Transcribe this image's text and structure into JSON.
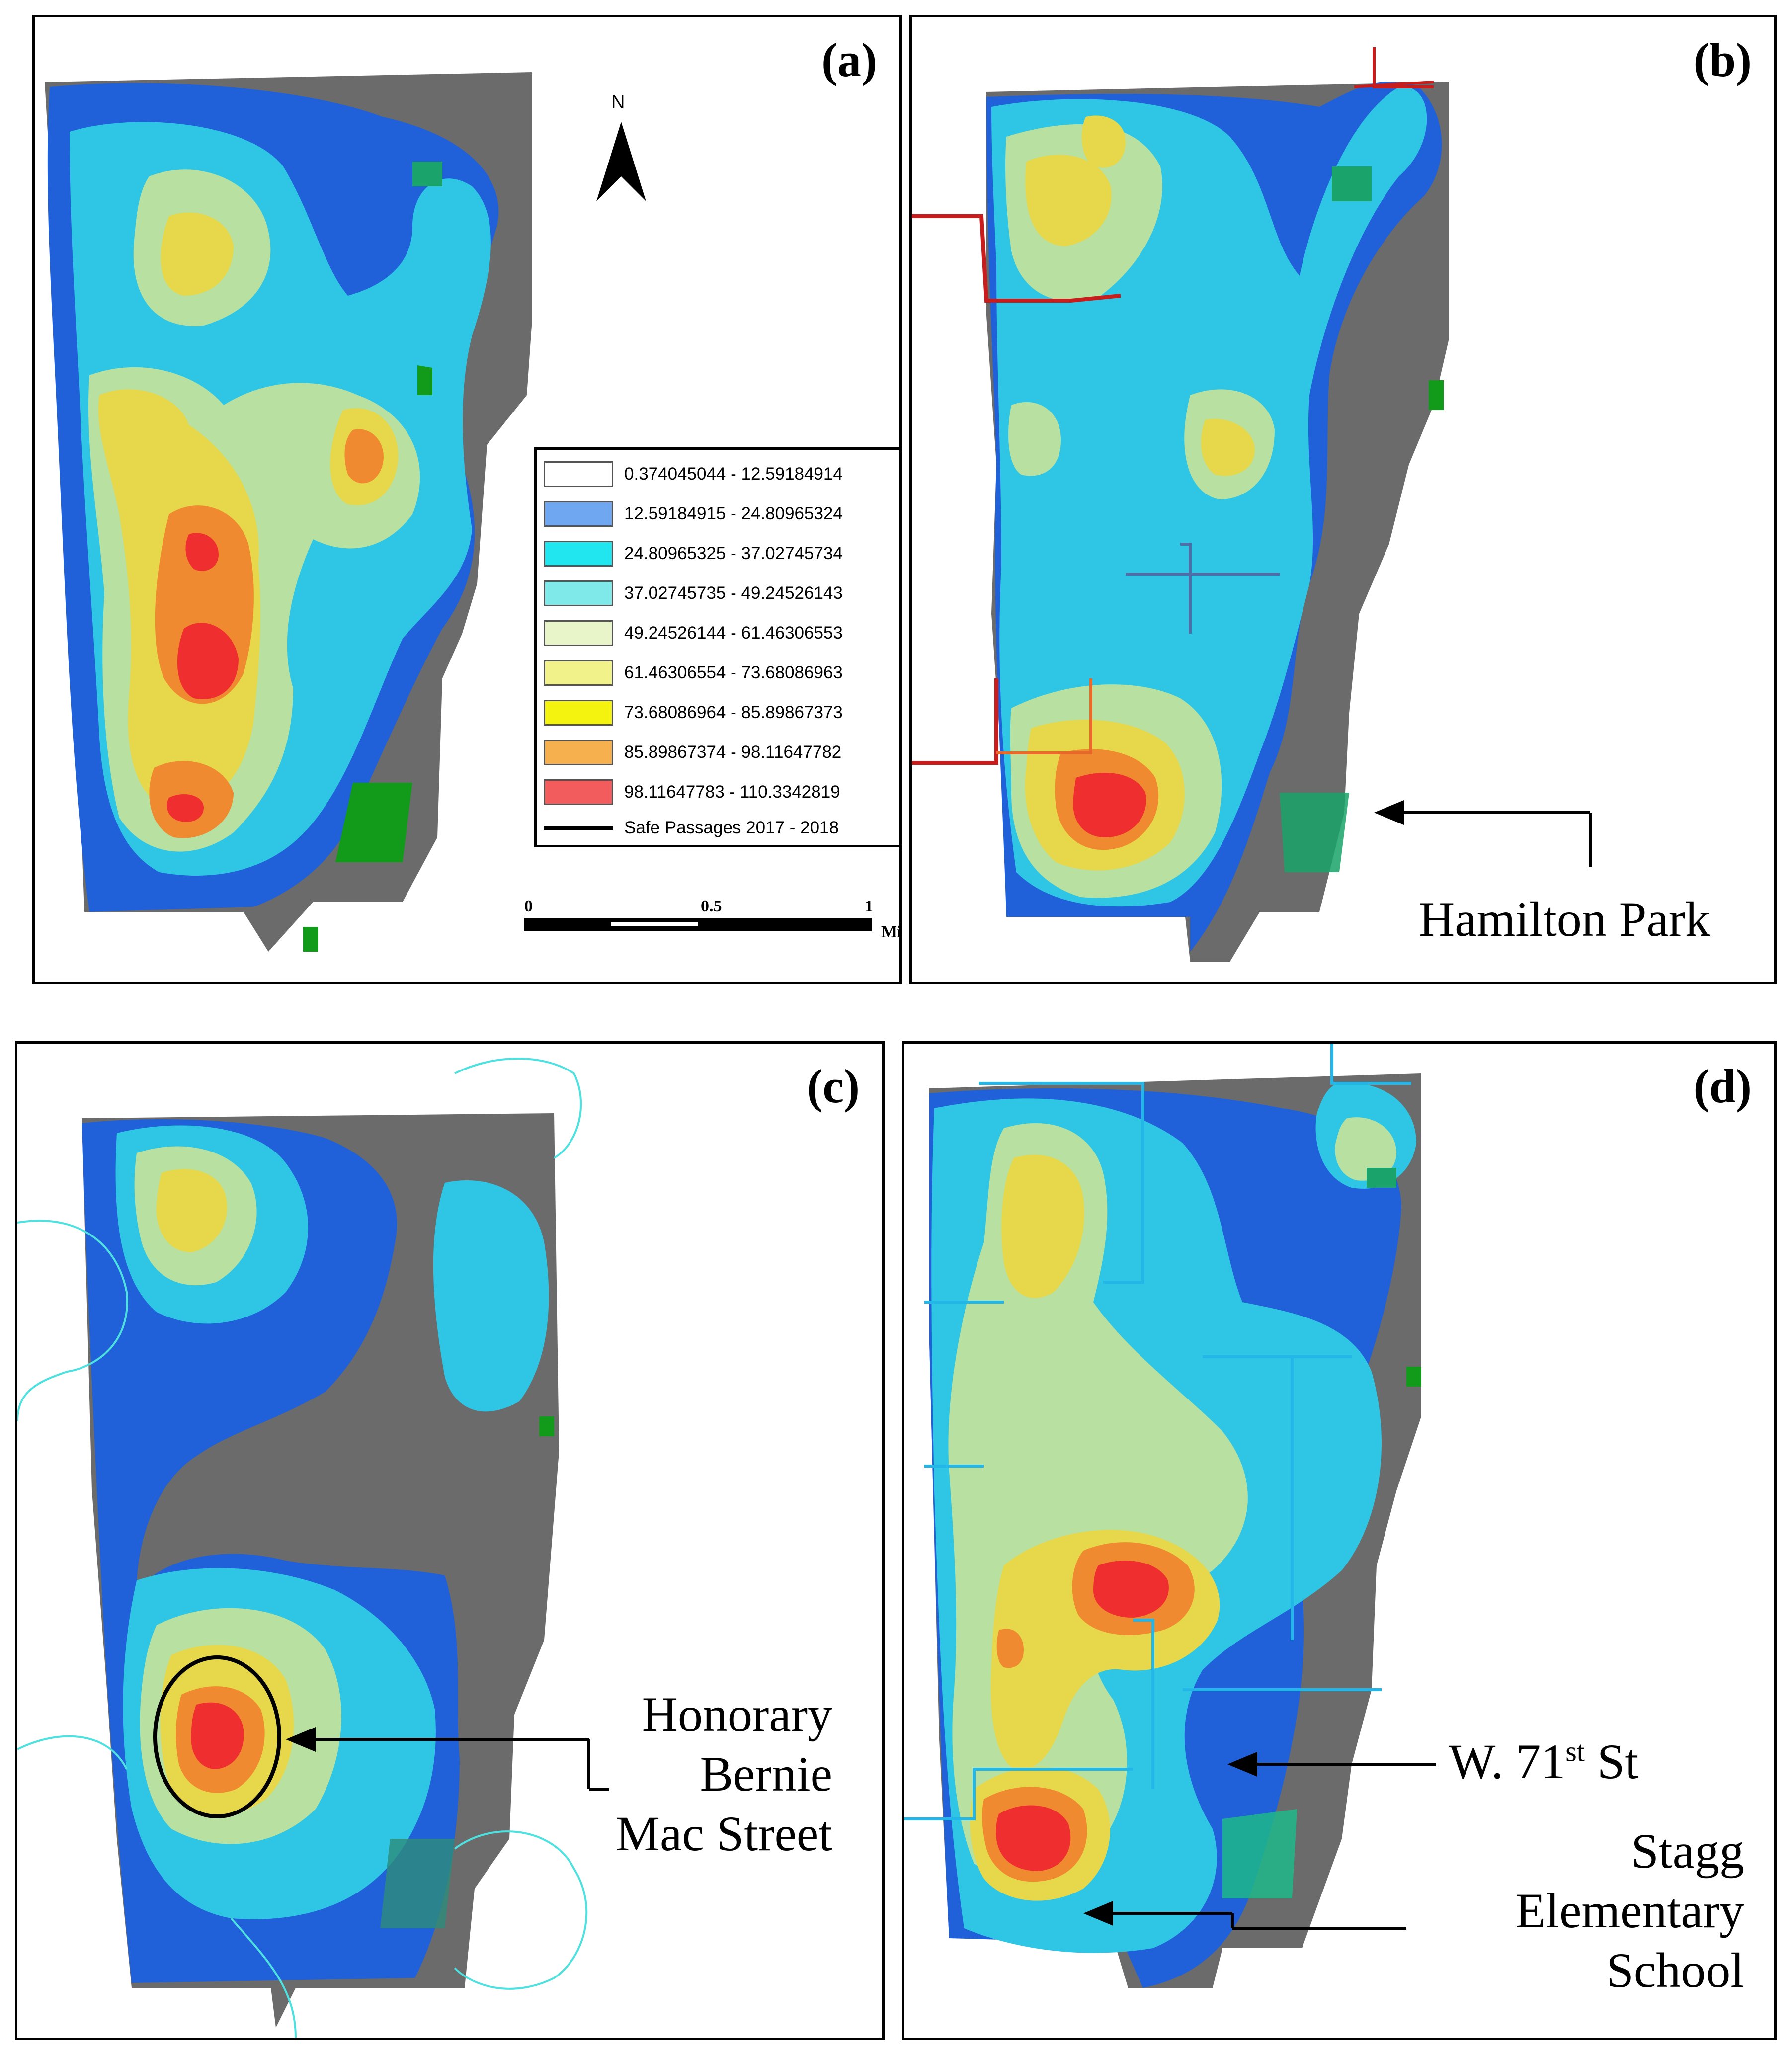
{
  "panels": [
    {
      "id": "a",
      "label": "(a)"
    },
    {
      "id": "b",
      "label": "(b)"
    },
    {
      "id": "c",
      "label": "(c)"
    },
    {
      "id": "d",
      "label": "(d)"
    }
  ],
  "north_arrow": {
    "letter": "N"
  },
  "legend": {
    "classes": [
      {
        "range": "0.374045044 - 12.59184914",
        "color": "#ffffff"
      },
      {
        "range": "12.59184915 - 24.80965324",
        "color": "#6fa8f0"
      },
      {
        "range": "24.80965325 - 37.02745734",
        "color": "#21e6f0"
      },
      {
        "range": "37.02745735 - 49.24526143",
        "color": "#7fe9ea"
      },
      {
        "range": "49.24526144 - 61.46306553",
        "color": "#e7f5c9"
      },
      {
        "range": "61.46306554 - 73.68086963",
        "color": "#f2f28a"
      },
      {
        "range": "73.68086964 - 85.89867373",
        "color": "#f4f20f"
      },
      {
        "range": "85.89867374 - 98.11647782",
        "color": "#f7b04e"
      },
      {
        "range": "98.11647783 - 110.3342819",
        "color": "#f25c5c"
      }
    ],
    "line_entry": "Safe Passages 2017 - 2018"
  },
  "scale_bar": {
    "tick_0": "0",
    "tick_mid": "0.5",
    "tick_end": "1",
    "unit": "Mi."
  },
  "annotations": {
    "hamilton_park": "Hamilton Park",
    "bernie_line1": "Honorary",
    "bernie_line2": "Bernie",
    "bernie_line3": "Mac Street",
    "w71_main": "W. 71",
    "w71_sup": "st",
    "w71_end": " St",
    "stagg_line1": "Stagg",
    "stagg_line2": "Elementary",
    "stagg_line3": "School"
  },
  "colors": {
    "outside_gray": "#6b6b6b",
    "blue": "#2060d8",
    "cyan": "#2fc6e6",
    "light_green": "#b8e0a0",
    "yellow": "#e6d84a",
    "orange": "#f08a30",
    "red": "#ef2f2f",
    "park_green": "#129a1b",
    "route_red": "#c81d1d",
    "route_cyan": "#22b7e8"
  }
}
